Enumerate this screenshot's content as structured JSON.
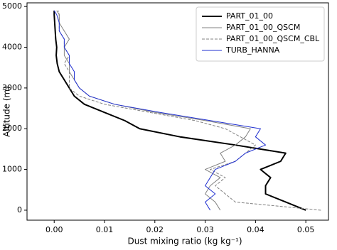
{
  "chart_data": {
    "type": "profile",
    "xlabel": "Dust mixing ratio (kg kg⁻¹)",
    "ylabel": "Altitude (m)",
    "y": [
      0,
      200,
      400,
      600,
      800,
      1000,
      1200,
      1400,
      1600,
      1800,
      2000,
      2200,
      2400,
      2600,
      2800,
      3000,
      3200,
      3400,
      3600,
      3800,
      4000,
      4200,
      4400,
      4600,
      4800,
      4900
    ],
    "series": [
      {
        "name": "PART_01_00",
        "color": "#000000",
        "width": 2,
        "dash": "none",
        "values": [
          0.05,
          0.046,
          0.042,
          0.042,
          0.043,
          0.041,
          0.045,
          0.046,
          0.036,
          0.025,
          0.017,
          0.014,
          0.01,
          0.006,
          0.004,
          0.003,
          0.002,
          0.001,
          0.0006,
          0.0004,
          0.0005,
          0.0003,
          0.0002,
          0.0001,
          0.0,
          0.0
        ]
      },
      {
        "name": "PART_01_00_QSCM",
        "color": "#808080",
        "width": 1,
        "dash": "none",
        "values": [
          0.033,
          0.032,
          0.03,
          0.031,
          0.033,
          0.03,
          0.034,
          0.033,
          0.036,
          0.038,
          0.039,
          0.03,
          0.02,
          0.012,
          0.007,
          0.005,
          0.004,
          0.003,
          0.003,
          0.002,
          0.002,
          0.003,
          0.002,
          0.001,
          0.001,
          0.0005
        ]
      },
      {
        "name": "PART_01_00_QSCM_CBL",
        "color": "#808080",
        "width": 1,
        "dash": "4 2",
        "values": [
          0.053,
          0.036,
          0.034,
          0.032,
          0.034,
          0.031,
          0.036,
          0.038,
          0.04,
          0.037,
          0.034,
          0.028,
          0.019,
          0.01,
          0.005,
          0.003,
          0.003,
          0.003,
          0.002,
          0.003,
          0.002,
          0.002,
          0.001,
          0.001,
          0.001,
          0.0008
        ]
      },
      {
        "name": "TURB_HANNA",
        "color": "#1f2fd0",
        "width": 1,
        "dash": "none",
        "values": [
          0.031,
          0.03,
          0.032,
          0.03,
          0.031,
          0.032,
          0.036,
          0.038,
          0.042,
          0.04,
          0.041,
          0.031,
          0.021,
          0.012,
          0.007,
          0.005,
          0.004,
          0.004,
          0.003,
          0.003,
          0.002,
          0.002,
          0.001,
          0.001,
          0.0005,
          0.0
        ]
      }
    ],
    "xlim": [
      -0.0054,
      0.0545
    ],
    "xticks": [
      {
        "value": 0,
        "label": "0.00"
      },
      0.01,
      0.02,
      0.03,
      0.04,
      0.05
    ],
    "ylim": [
      -245,
      5090
    ],
    "yticks": [
      0,
      1000,
      2000,
      3000,
      4000,
      5000
    ],
    "legend": "upper right"
  }
}
